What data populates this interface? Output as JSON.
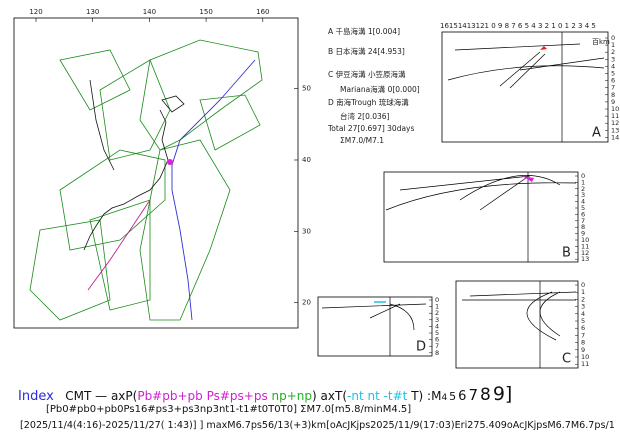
{
  "map": {
    "lon_ticks": [
      120,
      130,
      140,
      150,
      160
    ],
    "lat_ticks": [
      50,
      40,
      30,
      20
    ]
  },
  "legend": [
    "A 千島海溝 1[0.004]",
    "B 日本海溝 24[4.953]",
    "C 伊豆海溝 小笠原海溝",
    "Mariana海溝 0[0.000]",
    "D 南海Trough 琉球海溝",
    "台湾 2[0.036]",
    "Total 27[0.697] 30days",
    "ΣM7.0/M7.1"
  ],
  "scale": {
    "distance": "16151413121 0 9 8 7 6 5 4 3 2 1 0 1 2 3 4 5",
    "unit": "百km"
  },
  "panels": [
    {
      "label": "A",
      "depth_ticks": [
        0,
        1,
        2,
        3,
        4,
        5,
        6,
        7,
        8,
        9,
        10,
        11,
        12,
        13,
        14
      ]
    },
    {
      "label": "B",
      "depth_ticks": [
        0,
        1,
        2,
        3,
        4,
        5,
        6,
        7,
        8,
        9,
        10,
        11,
        12,
        13
      ]
    },
    {
      "label": "C",
      "depth_ticks": [
        0,
        1,
        2,
        3,
        4,
        5,
        6,
        7,
        8,
        9,
        10,
        11
      ]
    },
    {
      "label": "D",
      "depth_ticks": [
        0,
        1,
        2,
        3,
        4,
        5,
        6,
        7,
        8
      ]
    }
  ],
  "footer": {
    "index": "Index",
    "line1": [
      "CMT — axP(",
      "Pb#pb+pb",
      " Ps#ps+ps",
      " np+np",
      ") axT(",
      "-nt nt -t#t",
      " T) :M",
      "4",
      "5",
      "6",
      "7",
      "8",
      "9]"
    ],
    "line2": "[Pb0#pb0+pb0Ps16#ps3+ps3np3nt1-t1#t0T0T0] ΣM7.0[m5.8/minM4.5]",
    "line3": "[2025/11/4(4:16)-2025/11/27( 1:43)] ] maxM6.7ps56/13(+3)km[oAcJKjps2025/11/9(17:03)Eri275.409oAcJKjpsM6.7M6.7ps/1"
  }
}
